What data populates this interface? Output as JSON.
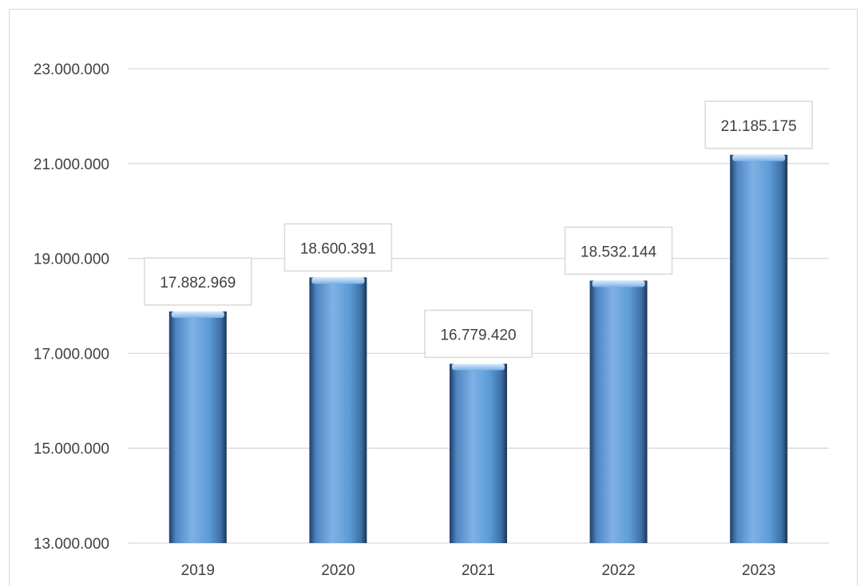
{
  "chart_data": {
    "type": "bar",
    "title": "",
    "xlabel": "",
    "ylabel": "",
    "categories": [
      "2019",
      "2020",
      "2021",
      "2022",
      "2023"
    ],
    "values": [
      17882969,
      18600391,
      16779420,
      18532144,
      21185175
    ],
    "data_labels": [
      "17.882.969",
      "18.600.391",
      "16.779.420",
      "18.532.144",
      "21.185.175"
    ],
    "ylim": [
      13000000,
      23000000
    ],
    "yticks": [
      13000000,
      15000000,
      17000000,
      19000000,
      21000000,
      23000000
    ],
    "ytick_labels": [
      "13.000.000",
      "15.000.000",
      "17.000.000",
      "19.000.000",
      "21.000.000",
      "23.000.000"
    ],
    "grid": true,
    "legend": "none",
    "colors": {
      "bar_light": "#8dbbea",
      "bar_main": "#5b9bd5",
      "bar_dark": "#1f3f66",
      "bar_top": "#b9d9f7",
      "grid": "#d9d9d9",
      "label_border": "#d9d9d9",
      "text": "#404040"
    }
  }
}
